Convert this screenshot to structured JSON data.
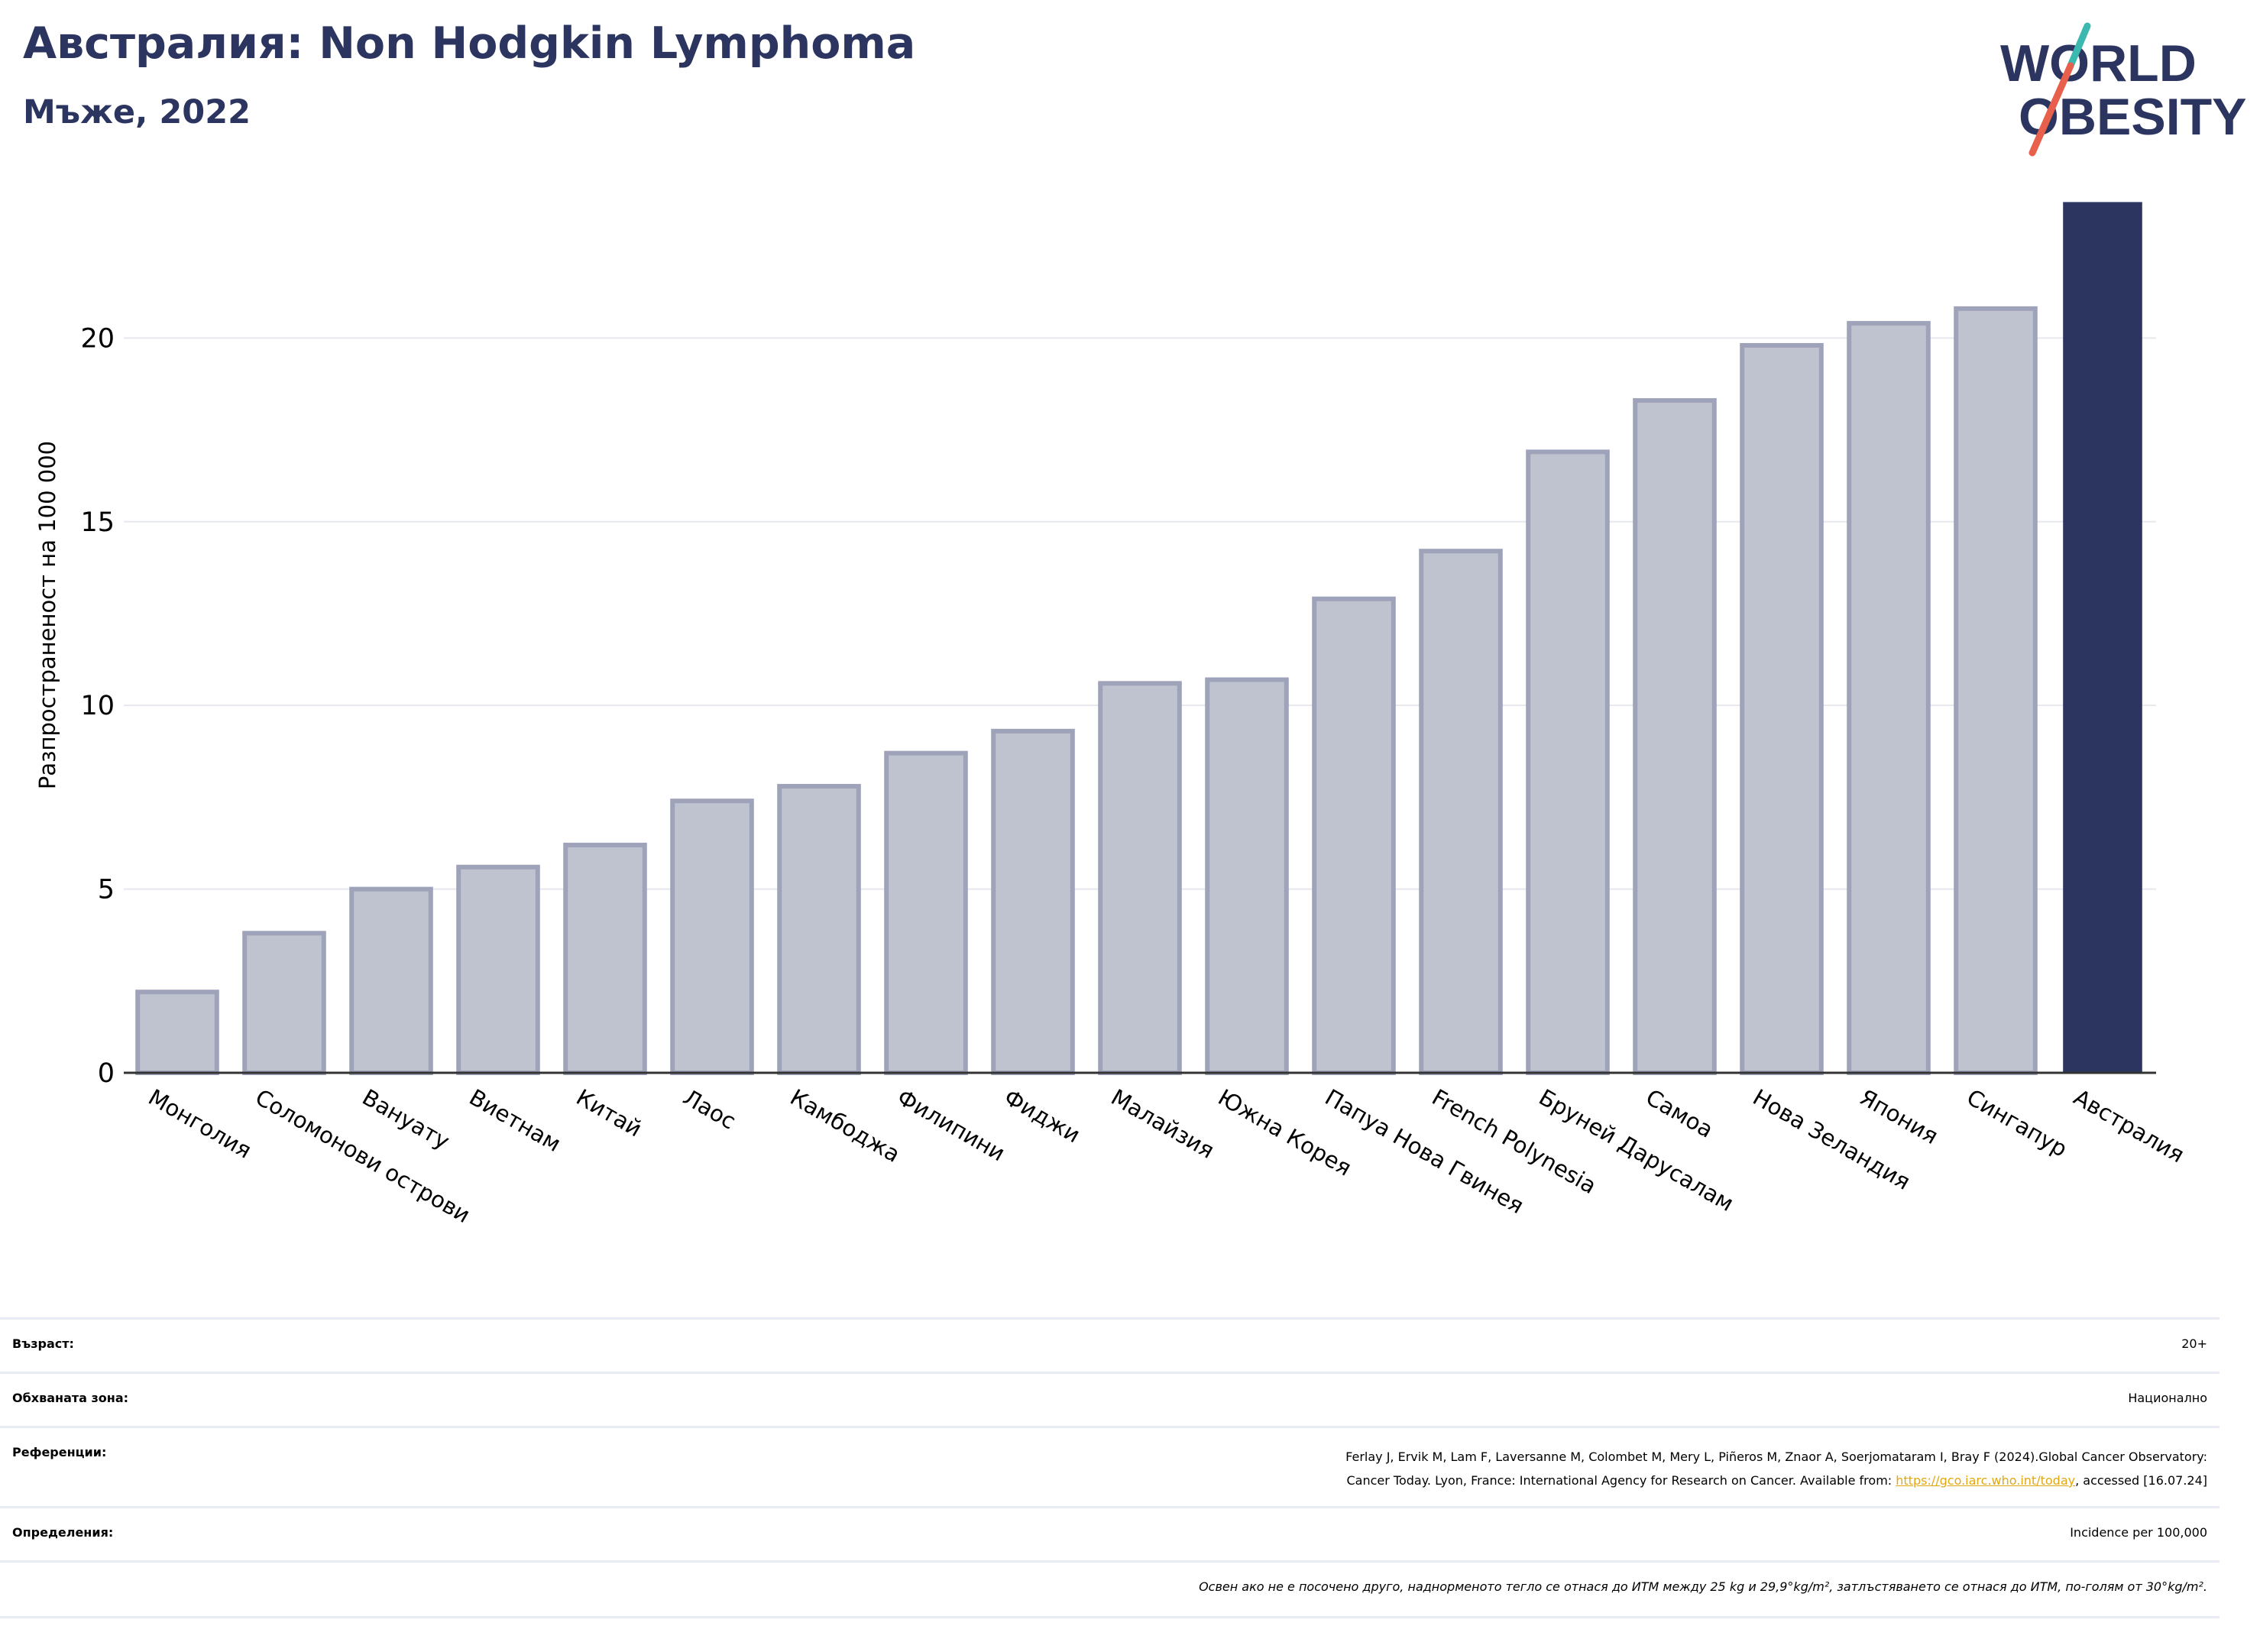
{
  "header": {
    "title": "Австралия: Non Hodgkin Lymphoma",
    "subtitle": "Мъже, 2022"
  },
  "logo": {
    "line1": "WORLD",
    "line2": "OBESITY",
    "colors": {
      "text": "#2b3560",
      "slash_top": "#3bb8b0",
      "slash_bottom": "#e8604c"
    }
  },
  "chart_data": {
    "type": "bar",
    "ylabel": "Разпространеност  на 100 000",
    "ylim": [
      0,
      24
    ],
    "yticks": [
      0,
      5,
      10,
      15,
      20
    ],
    "grid": true,
    "categories": [
      "Монголия",
      "Соломонови острови",
      "Вануату",
      "Виетнам",
      "Китай",
      "Лаос",
      "Камбоджа",
      "Филипини",
      "Фиджи",
      "Малайзия",
      "Южна Корея",
      "Папуа Нова Гвинея",
      "French Polynesia",
      "Бруней Дарусалам",
      "Самоа",
      "Нова Зеландия",
      "Япония",
      "Сингапур",
      "Австралия"
    ],
    "values": [
      2.2,
      3.8,
      5.0,
      5.6,
      6.2,
      7.4,
      7.8,
      8.7,
      9.3,
      10.6,
      10.7,
      12.9,
      14.2,
      16.9,
      18.3,
      19.8,
      20.4,
      20.8,
      23.7
    ],
    "highlight": "Австралия",
    "colors": {
      "bar": "#bfc2cf",
      "bar_edge": "#9ea3ba",
      "highlight": "#2b3560",
      "grid": "#e6e8ef"
    }
  },
  "meta": {
    "age_label": "Възраст:",
    "age_value": "20+",
    "area_label": "Обхваната зона:",
    "area_value": "Национално",
    "ref_label": "Референции:",
    "ref_line1": "Ferlay J, Ervik M, Lam F, Laversanne M, Colombet M, Mery L, Piñeros M, Znaor A, Soerjomataram I, Bray F (2024).Global Cancer Observatory:",
    "ref_line2_pre": "Cancer Today. Lyon, France: International Agency for Research on Cancer. Available from: ",
    "ref_link": "https://gco.iarc.who.int/today",
    "ref_line2_post": ", accessed [16.07.24]",
    "def_label": "Определения:",
    "def_value": "Incidence per 100,000",
    "note": "Освен ако не е посочено друго, наднорменото тегло се отнася до ИТМ между 25 kg и 29,9°kg/m², затлъстяването се отнася до ИТМ, по-голям от 30°kg/m²."
  }
}
